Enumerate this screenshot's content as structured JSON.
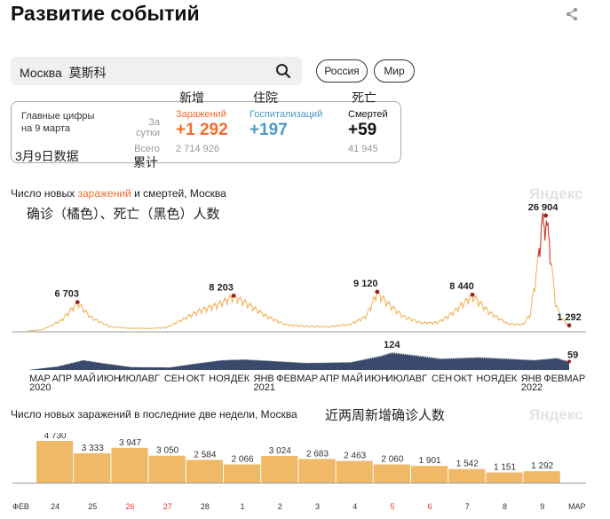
{
  "header": {
    "title": "Развитие событий",
    "share_icon": "share-icon"
  },
  "search": {
    "value": "Москва",
    "note": "莫斯科",
    "icon": "search-icon"
  },
  "region_buttons": [
    "Россия",
    "Мир"
  ],
  "summary": {
    "main_label": "Главные цифры\nна 9 марта",
    "main_note": "3月9日数据",
    "period_label": "За\nсутки",
    "total_label": "Всего",
    "total_note": "累计",
    "columns": [
      {
        "note": "新增",
        "label": "Заражений",
        "value": "+1 292",
        "total": "2 714 926",
        "color": "#f06d2f"
      },
      {
        "note": "住院",
        "label": "Госпитализаций",
        "value": "+197",
        "total": "",
        "color": "#4a9ac2"
      },
      {
        "note": "死亡",
        "label": "Смертей",
        "value": "+59",
        "total": "41 945",
        "color": "#111111"
      }
    ]
  },
  "chart1": {
    "title_prefix": "Число новых ",
    "title_highlight": "заражений",
    "title_suffix": " и смертей, Москва",
    "note": "确诊（橘色）、死亡（黑色）人数",
    "watermark": "Яндекс",
    "months": [
      "МАР",
      "АПР",
      "МАЙ",
      "ИЮН",
      "ИЮЛ",
      "АВГ",
      "СЕН",
      "ОКТ",
      "НОЯ",
      "ДЕК",
      "ЯНВ",
      "ФЕВ",
      "МАР",
      "АПР",
      "МАЙ",
      "ИЮН",
      "ИЮЛ",
      "АВГ",
      "СЕН",
      "ОКТ",
      "НОЯ",
      "ДЕК",
      "ЯНВ",
      "ФЕВ",
      "МАР"
    ],
    "year_labels": [
      {
        "label": "2020"
      },
      {
        "label": "2021"
      },
      {
        "label": "2022"
      }
    ],
    "colors": {
      "cases": "#f0b055",
      "deaths": "#3a4a6c",
      "marker": "#a12020"
    }
  },
  "chart_data": [
    {
      "type": "area",
      "title": "Число новых заражений и смертей, Москва",
      "series": [
        {
          "name": "заражений",
          "peaks": [
            {
              "month": "2020-05",
              "value": 6703
            },
            {
              "month": "2020-12",
              "value": 8203
            },
            {
              "month": "2021-06",
              "value": 9120
            },
            {
              "month": "2021-10",
              "value": 8440
            },
            {
              "month": "2022-02",
              "value": 26904
            },
            {
              "month": "2022-03-09",
              "value": 1292
            }
          ]
        },
        {
          "name": "смертей",
          "peaks": [
            {
              "month": "2021-07",
              "value": 124
            },
            {
              "month": "2022-03-09",
              "value": 59
            }
          ]
        }
      ],
      "labels": [
        "6 703",
        "8 203",
        "9 120",
        "8 440",
        "26 904",
        "1 292",
        "124",
        "59"
      ]
    },
    {
      "type": "bar",
      "title": "Число новых заражений в последние две недели, Москва",
      "categories": [
        "24",
        "25",
        "26",
        "27",
        "28",
        "1",
        "2",
        "3",
        "4",
        "5",
        "6",
        "7",
        "8",
        "9"
      ],
      "values": [
        4730,
        3333,
        3947,
        3050,
        2584,
        2066,
        3024,
        2683,
        2463,
        2060,
        1901,
        1542,
        1151,
        1292
      ],
      "value_labels": [
        "4 730",
        "3 333",
        "3 947",
        "3 050",
        "2 584",
        "2 066",
        "3 024",
        "2 683",
        "2 463",
        "2 060",
        "1 901",
        "1 542",
        "1 151",
        "1 292"
      ],
      "red_days": [
        "26",
        "27",
        "5",
        "6"
      ],
      "month_start": "ФЕВ",
      "month_end": "МАР"
    }
  ],
  "chart2": {
    "note": "近两周新增确诊人数",
    "watermark": "Яндекс",
    "bar_color": "#f0b967",
    "red_color": "#e0383a"
  }
}
